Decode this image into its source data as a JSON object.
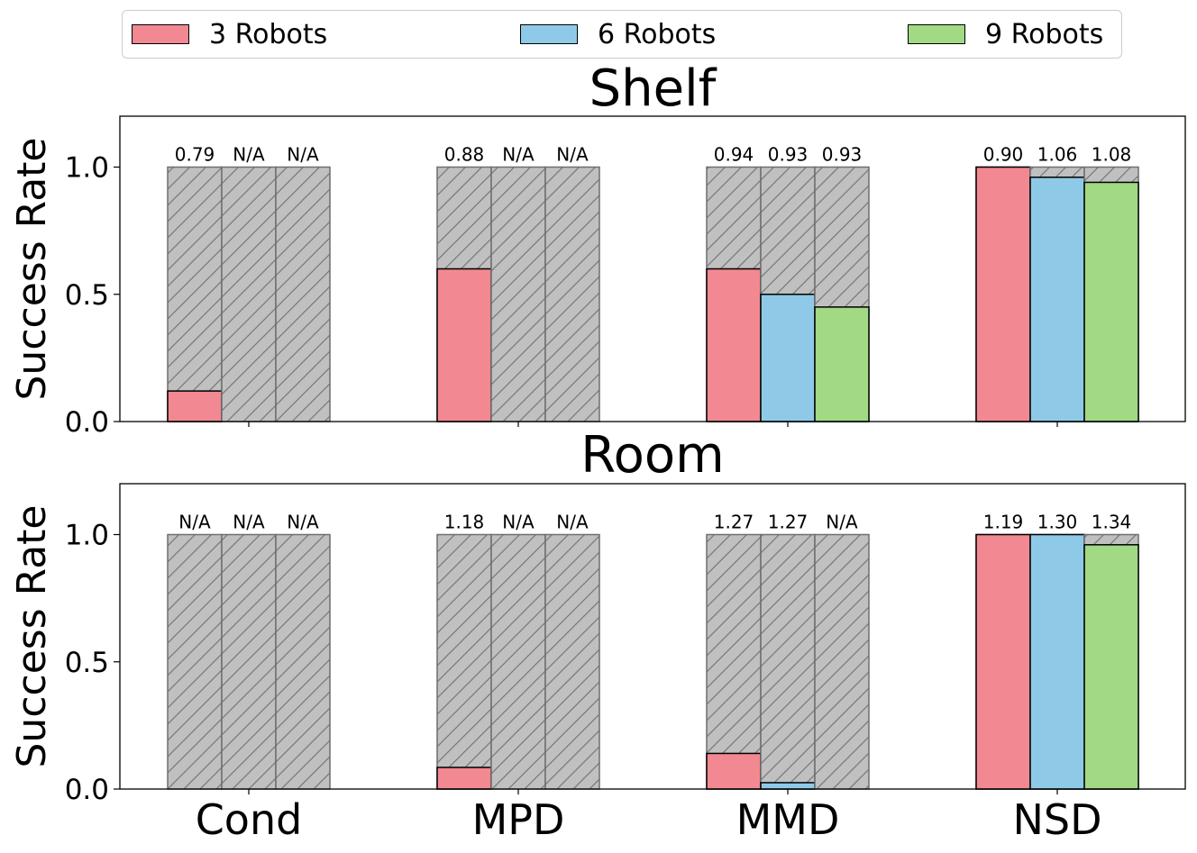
{
  "legend": [
    {
      "label": "3 Robots",
      "color": "#f28891"
    },
    {
      "label": "6 Robots",
      "color": "#8ecae8"
    },
    {
      "label": "9 Robots",
      "color": "#a1d984"
    }
  ],
  "chart_data": [
    {
      "type": "bar",
      "title": "Shelf",
      "ylabel": "Success Rate",
      "xlabel": "",
      "ylim": [
        0,
        1.2
      ],
      "yticks": [
        "0.0",
        "0.5",
        "1.0"
      ],
      "categories": [
        "Cond",
        "MPD",
        "MMD",
        "NSD"
      ],
      "background_bar_value": 1.0,
      "series": [
        {
          "name": "3 Robots",
          "values": [
            0.12,
            0.6,
            0.6,
            1.0
          ]
        },
        {
          "name": "6 Robots",
          "values": [
            0,
            0,
            0.5,
            0.96
          ]
        },
        {
          "name": "9 Robots",
          "values": [
            0,
            0,
            0.45,
            0.94
          ]
        }
      ],
      "annotations": [
        [
          "0.79",
          "N/A",
          "N/A"
        ],
        [
          "0.88",
          "N/A",
          "N/A"
        ],
        [
          "0.94",
          "0.93",
          "0.93"
        ],
        [
          "0.90",
          "1.06",
          "1.08"
        ]
      ]
    },
    {
      "type": "bar",
      "title": "Room",
      "ylabel": "Success Rate",
      "xlabel": "",
      "ylim": [
        0,
        1.2
      ],
      "yticks": [
        "0.0",
        "0.5",
        "1.0"
      ],
      "categories": [
        "Cond",
        "MPD",
        "MMD",
        "NSD"
      ],
      "background_bar_value": 1.0,
      "series": [
        {
          "name": "3 Robots",
          "values": [
            0,
            0.085,
            0.14,
            1.0
          ]
        },
        {
          "name": "6 Robots",
          "values": [
            0,
            0,
            0.025,
            1.0
          ]
        },
        {
          "name": "9 Robots",
          "values": [
            0,
            0,
            0,
            0.96
          ]
        }
      ],
      "annotations": [
        [
          "N/A",
          "N/A",
          "N/A"
        ],
        [
          "1.18",
          "N/A",
          "N/A"
        ],
        [
          "1.27",
          "1.27",
          "N/A"
        ],
        [
          "1.19",
          "1.30",
          "1.34"
        ]
      ]
    }
  ]
}
